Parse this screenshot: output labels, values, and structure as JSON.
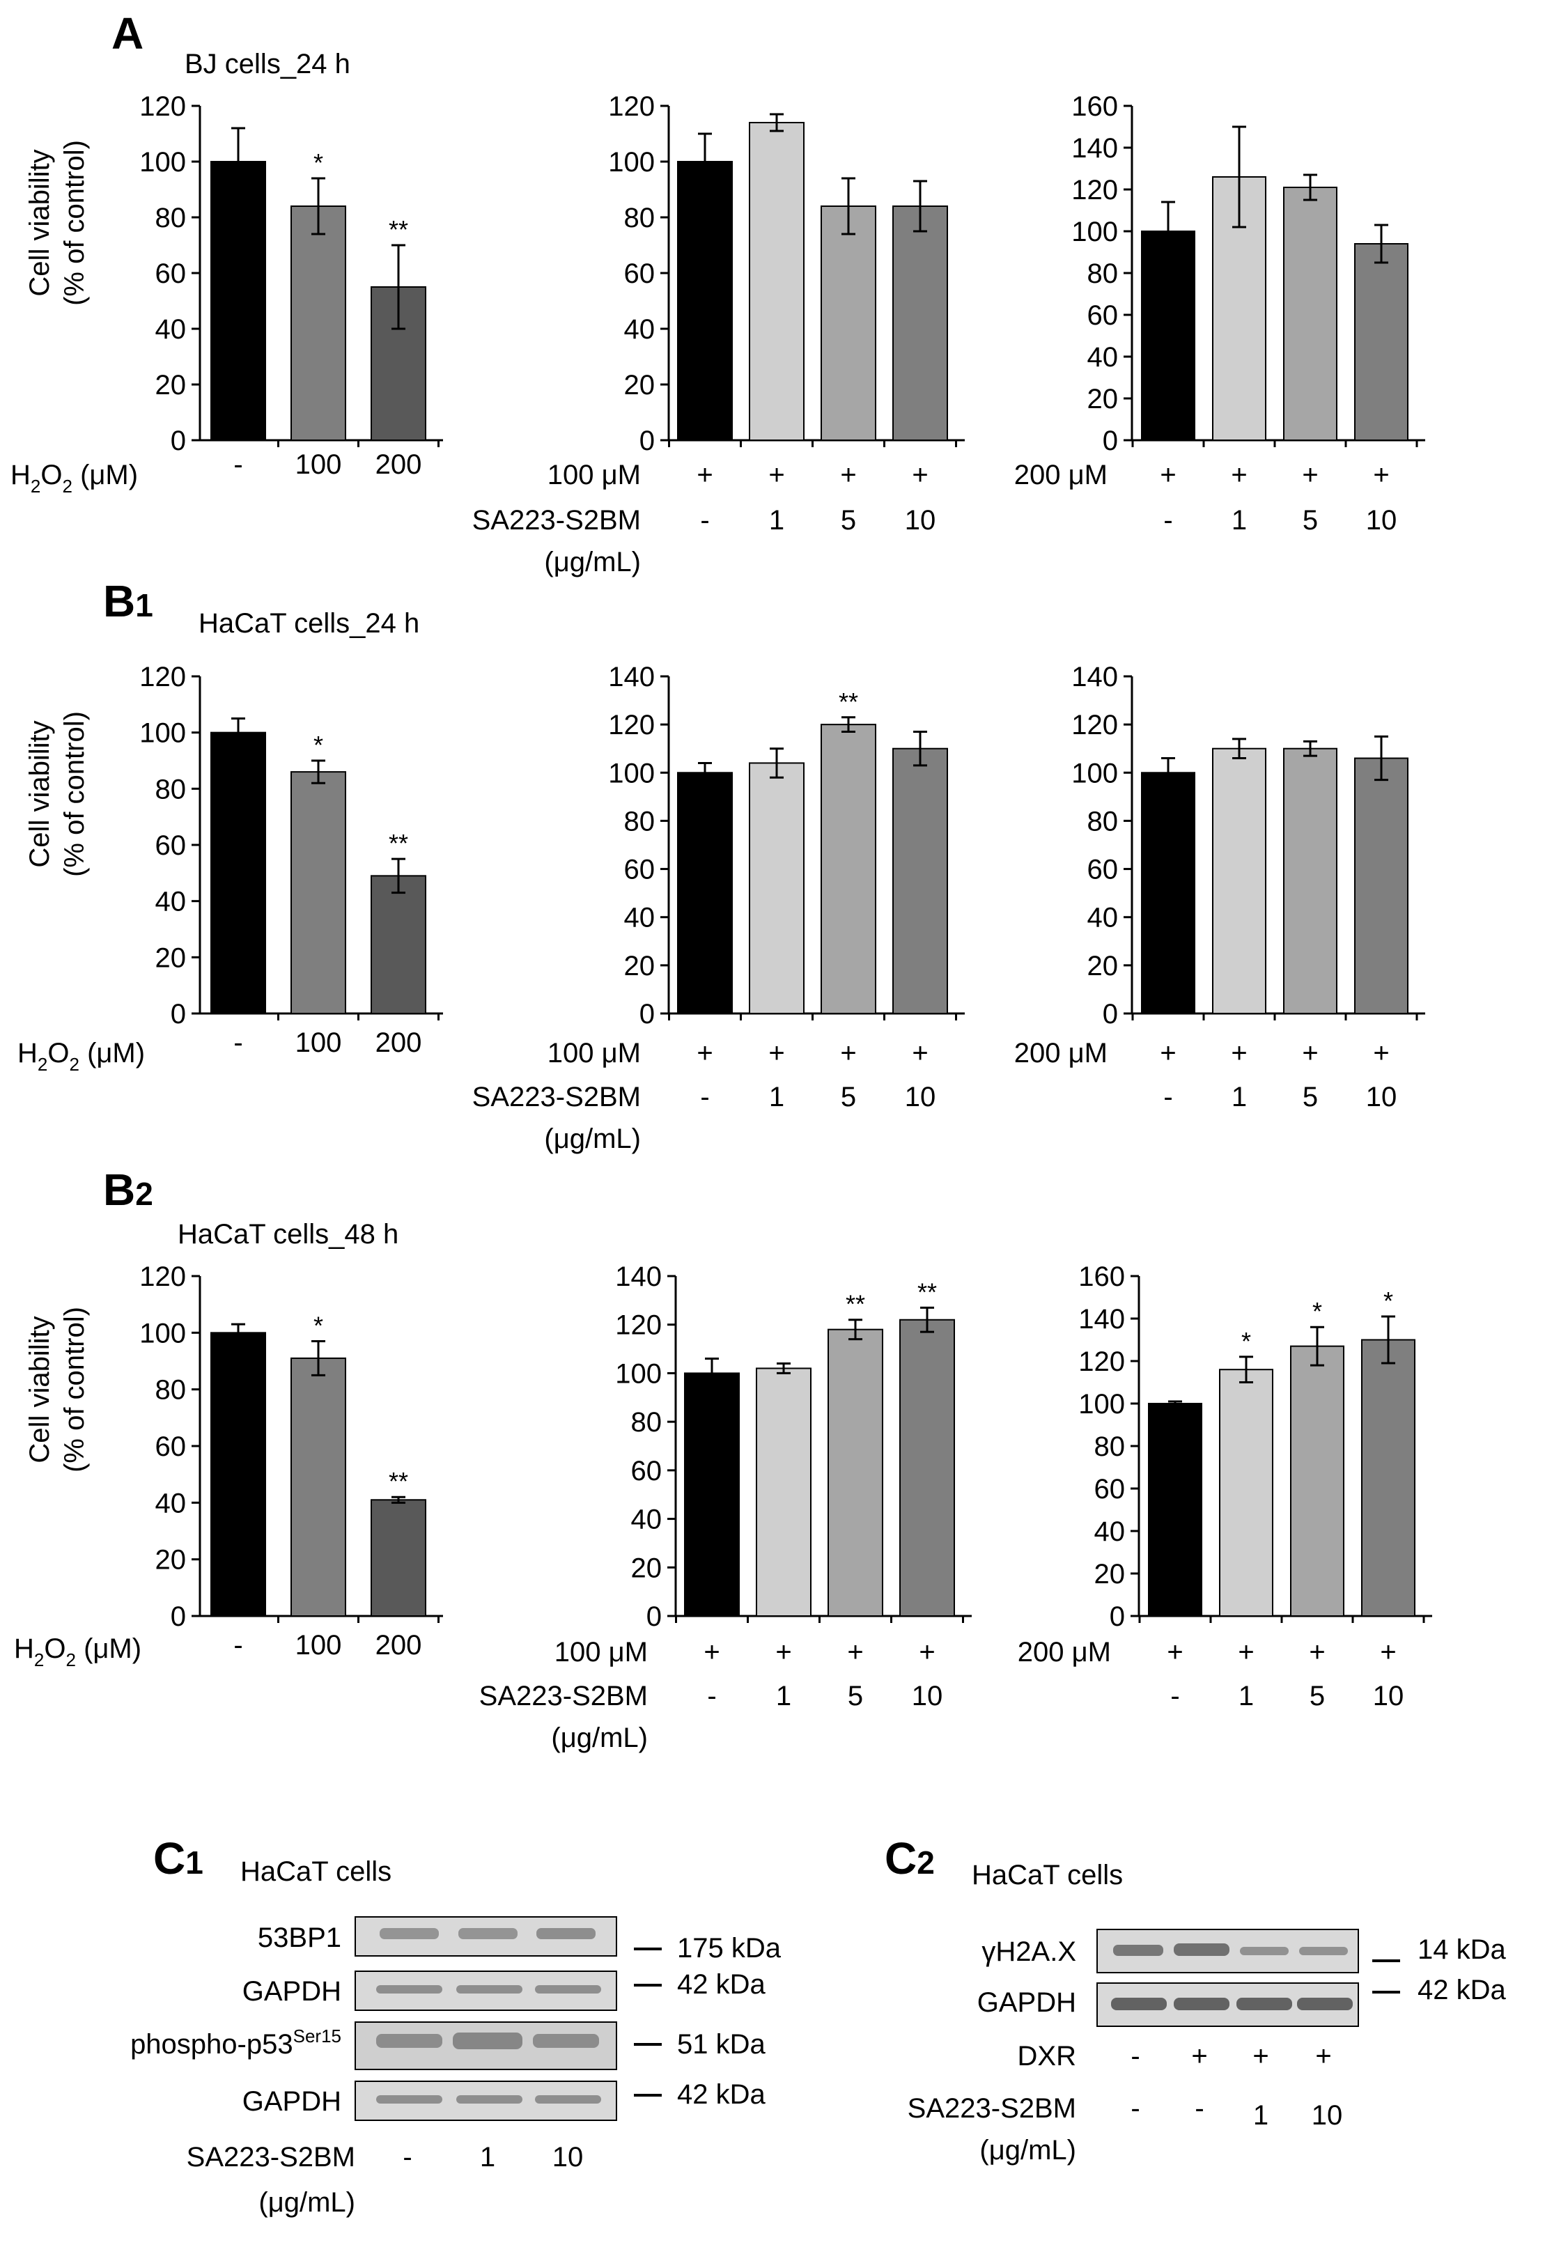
{
  "colors": {
    "black": "#000000",
    "light": "#cfcfcf",
    "mid": "#a6a6a6",
    "dark": "#7f7f7f",
    "darker": "#595959",
    "blot_bg": "#d9d9d9",
    "band": "#6e6e6e"
  },
  "panels": {
    "A": {
      "letter": "A",
      "sub": "",
      "title": "BJ cells_24 h"
    },
    "B1": {
      "letter": "B",
      "sub": "1",
      "title": "HaCaT cells_24 h"
    },
    "B2": {
      "letter": "B",
      "sub": "2",
      "title": "HaCaT cells_48 h"
    },
    "C1": {
      "letter": "C",
      "sub": "1",
      "title": "HaCaT cells"
    },
    "C2": {
      "letter": "C",
      "sub": "2",
      "title": "HaCaT cells"
    }
  },
  "ylabel": {
    "line1": "Cell viability",
    "line2": "(% of control)"
  },
  "row_labels": {
    "h2o2_prefix": "H",
    "h2o2_sub1": "2",
    "h2o2_mid": "O",
    "h2o2_sub2": "2",
    "h2o2_suffix": " (μM)",
    "dose100": "100 μM",
    "dose200": "200 μM",
    "sa": "SA223-S2BM",
    "unit": "(μg/mL)"
  },
  "chart_data": [
    {
      "id": "A-h2o2",
      "type": "bar",
      "categories": [
        "-",
        "100",
        "200"
      ],
      "values": [
        100,
        84,
        55
      ],
      "errors": [
        12,
        10,
        15
      ],
      "sig": [
        "",
        "*",
        "**"
      ],
      "ylim": [
        0,
        120
      ],
      "ticks": [
        0,
        20,
        40,
        60,
        80,
        100,
        120
      ],
      "colors": [
        "black",
        "dark",
        "darker"
      ]
    },
    {
      "id": "A-100",
      "type": "bar",
      "plus": [
        "+",
        "+",
        "+",
        "+"
      ],
      "categories": [
        "-",
        "1",
        "5",
        "10"
      ],
      "values": [
        100,
        114,
        84,
        84
      ],
      "errors": [
        10,
        3,
        10,
        9
      ],
      "sig": [
        "",
        "",
        "",
        ""
      ],
      "ylim": [
        0,
        120
      ],
      "ticks": [
        0,
        20,
        40,
        60,
        80,
        100,
        120
      ],
      "colors": [
        "black",
        "light",
        "mid",
        "dark"
      ]
    },
    {
      "id": "A-200",
      "type": "bar",
      "plus": [
        "+",
        "+",
        "+",
        "+"
      ],
      "categories": [
        "-",
        "1",
        "5",
        "10"
      ],
      "values": [
        100,
        126,
        121,
        94
      ],
      "errors": [
        14,
        24,
        6,
        9
      ],
      "sig": [
        "",
        "",
        "",
        ""
      ],
      "ylim": [
        0,
        160
      ],
      "ticks": [
        0,
        20,
        40,
        60,
        80,
        100,
        120,
        140,
        160
      ],
      "colors": [
        "black",
        "light",
        "mid",
        "dark"
      ]
    },
    {
      "id": "B1-h2o2",
      "type": "bar",
      "categories": [
        "-",
        "100",
        "200"
      ],
      "values": [
        100,
        86,
        49
      ],
      "errors": [
        5,
        4,
        6
      ],
      "sig": [
        "",
        "*",
        "**"
      ],
      "ylim": [
        0,
        120
      ],
      "ticks": [
        0,
        20,
        40,
        60,
        80,
        100,
        120
      ],
      "colors": [
        "black",
        "dark",
        "darker"
      ]
    },
    {
      "id": "B1-100",
      "type": "bar",
      "plus": [
        "+",
        "+",
        "+",
        "+"
      ],
      "categories": [
        "-",
        "1",
        "5",
        "10"
      ],
      "values": [
        100,
        104,
        120,
        110
      ],
      "errors": [
        4,
        6,
        3,
        7
      ],
      "sig": [
        "",
        "",
        "**",
        ""
      ],
      "ylim": [
        0,
        140
      ],
      "ticks": [
        0,
        20,
        40,
        60,
        80,
        100,
        120,
        140
      ],
      "colors": [
        "black",
        "light",
        "mid",
        "dark"
      ]
    },
    {
      "id": "B1-200",
      "type": "bar",
      "plus": [
        "+",
        "+",
        "+",
        "+"
      ],
      "categories": [
        "-",
        "1",
        "5",
        "10"
      ],
      "values": [
        100,
        110,
        110,
        106
      ],
      "errors": [
        6,
        4,
        3,
        9
      ],
      "sig": [
        "",
        "",
        "",
        ""
      ],
      "ylim": [
        0,
        140
      ],
      "ticks": [
        0,
        20,
        40,
        60,
        80,
        100,
        120,
        140
      ],
      "colors": [
        "black",
        "light",
        "mid",
        "dark"
      ]
    },
    {
      "id": "B2-h2o2",
      "type": "bar",
      "categories": [
        "-",
        "100",
        "200"
      ],
      "values": [
        100,
        91,
        41
      ],
      "errors": [
        3,
        6,
        1
      ],
      "sig": [
        "",
        "*",
        "**"
      ],
      "ylim": [
        0,
        120
      ],
      "ticks": [
        0,
        20,
        40,
        60,
        80,
        100,
        120
      ],
      "colors": [
        "black",
        "dark",
        "darker"
      ]
    },
    {
      "id": "B2-100",
      "type": "bar",
      "plus": [
        "+",
        "+",
        "+",
        "+"
      ],
      "categories": [
        "-",
        "1",
        "5",
        "10"
      ],
      "values": [
        100,
        102,
        118,
        122
      ],
      "errors": [
        6,
        2,
        4,
        5
      ],
      "sig": [
        "",
        "",
        "**",
        "**"
      ],
      "ylim": [
        0,
        140
      ],
      "ticks": [
        0,
        20,
        40,
        60,
        80,
        100,
        120,
        140
      ],
      "colors": [
        "black",
        "light",
        "mid",
        "dark"
      ]
    },
    {
      "id": "B2-200",
      "type": "bar",
      "plus": [
        "+",
        "+",
        "+",
        "+"
      ],
      "categories": [
        "-",
        "1",
        "5",
        "10"
      ],
      "values": [
        100,
        116,
        127,
        130
      ],
      "errors": [
        1,
        6,
        9,
        11
      ],
      "sig": [
        "",
        "*",
        "*",
        "*"
      ],
      "ylim": [
        0,
        160
      ],
      "ticks": [
        0,
        20,
        40,
        60,
        80,
        100,
        120,
        140,
        160
      ],
      "colors": [
        "black",
        "light",
        "mid",
        "dark"
      ]
    }
  ],
  "blots": {
    "C1": {
      "rows": [
        {
          "label": "53BP1",
          "kda": "175 kDa"
        },
        {
          "label": "GAPDH",
          "kda": "42 kDa"
        },
        {
          "label": "phospho-p53",
          "sup": "Ser15",
          "kda": "51 kDa"
        },
        {
          "label": "GAPDH",
          "kda": "42 kDa"
        }
      ],
      "treatment_label": "SA223-S2BM",
      "unit": "(μg/mL)",
      "lanes": [
        "-",
        "1",
        "10"
      ]
    },
    "C2": {
      "rows": [
        {
          "label": "γH2A.X",
          "kda": "14 kDa"
        },
        {
          "label": "GAPDH",
          "kda": "42 kDa"
        }
      ],
      "dxr_label": "DXR",
      "dxr": [
        "-",
        "+",
        "+",
        "+"
      ],
      "treatment_label": "SA223-S2BM",
      "unit": "(μg/mL)",
      "lanes": [
        "-",
        "-",
        "1",
        "10"
      ]
    }
  }
}
